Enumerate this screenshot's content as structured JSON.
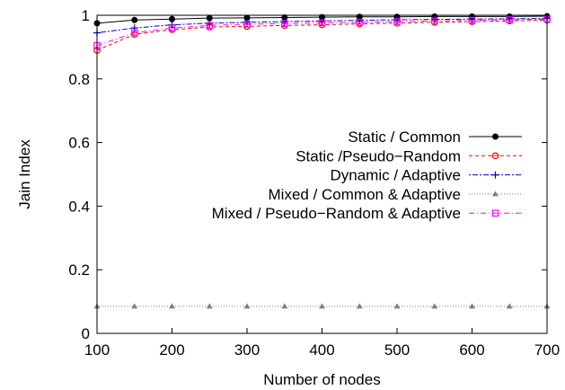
{
  "chart_data": {
    "type": "line",
    "xlabel": "Number of nodes",
    "ylabel": "Jain Index",
    "xlim": [
      100,
      700
    ],
    "ylim": [
      0,
      1
    ],
    "x_ticks": [
      100,
      200,
      300,
      400,
      500,
      600,
      700
    ],
    "y_ticks": [
      0,
      0.2,
      0.4,
      0.6,
      0.8,
      1
    ],
    "y_tick_labels": [
      "0",
      "0.2",
      "0.4",
      "0.6",
      "0.8",
      "1"
    ],
    "grid": false,
    "legend_position": "right",
    "x": [
      100,
      150,
      200,
      250,
      300,
      350,
      400,
      450,
      500,
      550,
      600,
      650,
      700
    ],
    "series": [
      {
        "name": "Static / Common",
        "color": "#000000",
        "dash": "",
        "marker": "filled-circle",
        "values": [
          0.975,
          0.985,
          0.988,
          0.991,
          0.992,
          0.993,
          0.994,
          0.995,
          0.995,
          0.996,
          0.996,
          0.996,
          0.997
        ]
      },
      {
        "name": "Static /Pseudo−Random",
        "color": "#ff0000",
        "dash": "4,3",
        "marker": "open-circle",
        "values": [
          0.89,
          0.94,
          0.955,
          0.963,
          0.965,
          0.968,
          0.97,
          0.973,
          0.975,
          0.978,
          0.98,
          0.982,
          0.985
        ]
      },
      {
        "name": "Dynamic / Adaptive",
        "color": "#0000cc",
        "dash": "2,2,6,2",
        "marker": "plus",
        "values": [
          0.945,
          0.96,
          0.97,
          0.975,
          0.978,
          0.98,
          0.982,
          0.984,
          0.986,
          0.987,
          0.988,
          0.989,
          0.99
        ]
      },
      {
        "name": "Mixed / Common & Adaptive",
        "color": "#808080",
        "dash": "1,2",
        "marker": "triangle",
        "values": [
          0.085,
          0.085,
          0.085,
          0.085,
          0.085,
          0.085,
          0.085,
          0.085,
          0.085,
          0.085,
          0.085,
          0.085,
          0.085
        ]
      },
      {
        "name": "Mixed / Pseudo−Random & Adaptive",
        "color": "#ff00ff",
        "dash": "6,3,1,3",
        "marker": "open-square",
        "values": [
          0.905,
          0.945,
          0.96,
          0.968,
          0.972,
          0.974,
          0.976,
          0.978,
          0.98,
          0.982,
          0.984,
          0.986,
          0.988
        ]
      }
    ]
  }
}
